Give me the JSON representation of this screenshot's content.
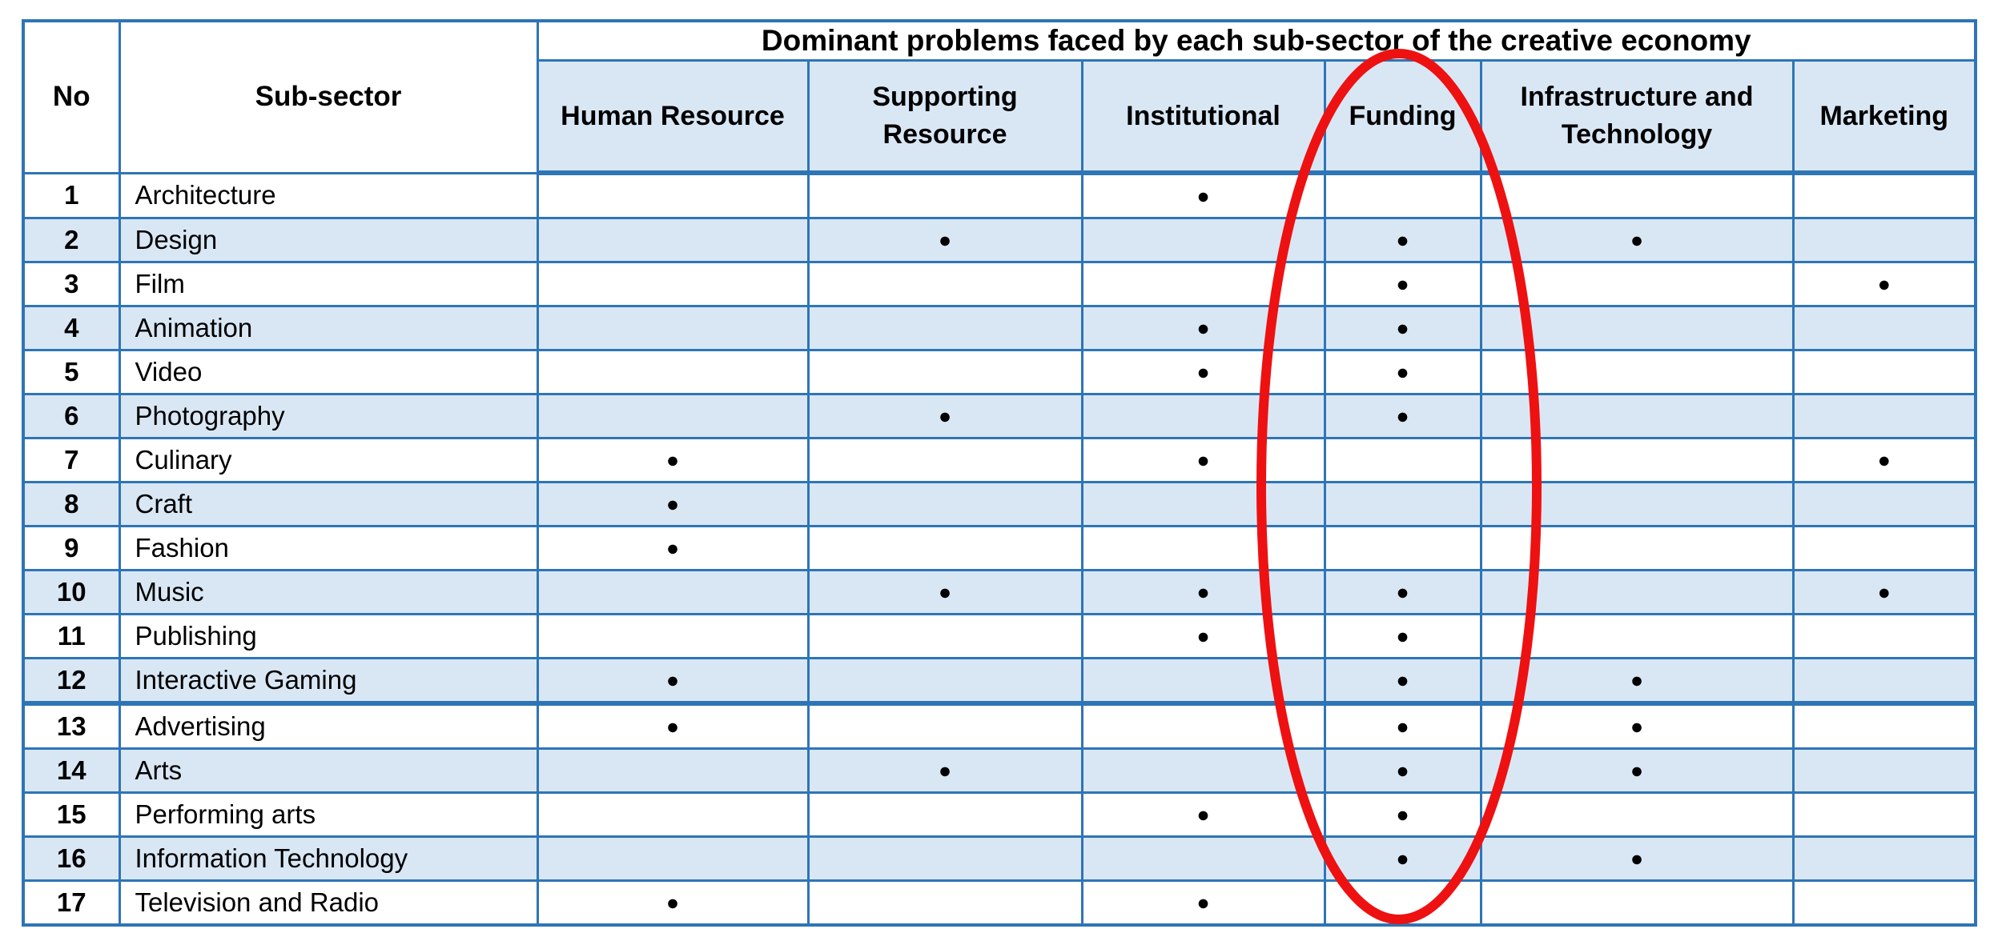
{
  "chart_data": {
    "type": "table",
    "title": "Dominant problems faced by each sub-sector of the creative economy",
    "corner_columns": {
      "no": "No",
      "subsector": "Sub-sector"
    },
    "problem_columns": [
      "Human Resource",
      "Supporting Resource",
      "Institutional",
      "Funding",
      "Infrastructure and Technology",
      "Marketing"
    ],
    "dot_symbol": "●",
    "rows": [
      {
        "no": "1",
        "name": "Architecture",
        "dots": [
          0,
          0,
          1,
          0,
          0,
          0
        ]
      },
      {
        "no": "2",
        "name": "Design",
        "dots": [
          0,
          1,
          0,
          1,
          1,
          0
        ]
      },
      {
        "no": "3",
        "name": "Film",
        "dots": [
          0,
          0,
          0,
          1,
          0,
          1
        ]
      },
      {
        "no": "4",
        "name": "Animation",
        "dots": [
          0,
          0,
          1,
          1,
          0,
          0
        ]
      },
      {
        "no": "5",
        "name": "Video",
        "dots": [
          0,
          0,
          1,
          1,
          0,
          0
        ]
      },
      {
        "no": "6",
        "name": "Photography",
        "dots": [
          0,
          1,
          0,
          1,
          0,
          0
        ]
      },
      {
        "no": "7",
        "name": "Culinary",
        "dots": [
          1,
          0,
          1,
          0,
          0,
          1
        ]
      },
      {
        "no": "8",
        "name": "Craft",
        "dots": [
          1,
          0,
          0,
          0,
          0,
          0
        ]
      },
      {
        "no": "9",
        "name": "Fashion",
        "dots": [
          1,
          0,
          0,
          0,
          0,
          0
        ]
      },
      {
        "no": "10",
        "name": "Music",
        "dots": [
          0,
          1,
          1,
          1,
          0,
          1
        ]
      },
      {
        "no": "11",
        "name": "Publishing",
        "dots": [
          0,
          0,
          1,
          1,
          0,
          0
        ]
      },
      {
        "no": "12",
        "name": "Interactive Gaming",
        "dots": [
          1,
          0,
          0,
          1,
          1,
          0
        ]
      },
      {
        "no": "13",
        "name": "Advertising",
        "dots": [
          1,
          0,
          0,
          1,
          1,
          0
        ]
      },
      {
        "no": "14",
        "name": "Arts",
        "dots": [
          0,
          1,
          0,
          1,
          1,
          0
        ]
      },
      {
        "no": "15",
        "name": "Performing arts",
        "dots": [
          0,
          0,
          1,
          1,
          0,
          0
        ]
      },
      {
        "no": "16",
        "name": "Information Technology",
        "dots": [
          0,
          0,
          0,
          1,
          1,
          0
        ]
      },
      {
        "no": "17",
        "name": "Television and Radio",
        "dots": [
          1,
          0,
          1,
          0,
          0,
          0
        ]
      }
    ],
    "annotation": {
      "shape": "ellipse",
      "highlights_column": "Funding"
    }
  },
  "colors": {
    "border_blue": "#2e75b6",
    "row_fill_blue": "#d9e7f5",
    "annotation_red": "#ee1111",
    "dot_black": "#000000"
  }
}
